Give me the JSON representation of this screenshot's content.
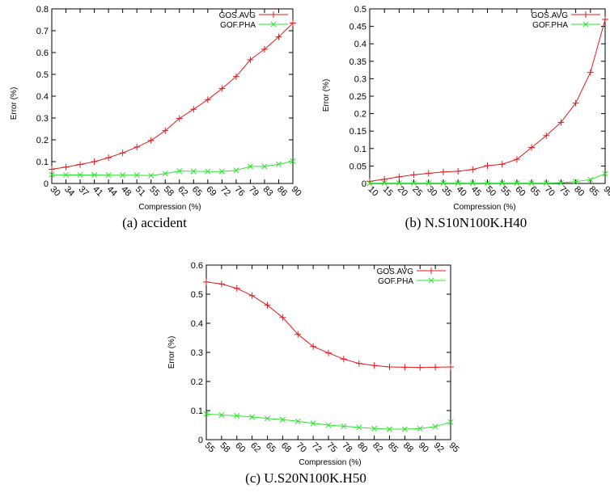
{
  "chart_data": [
    {
      "type": "line",
      "caption": "(a) accident",
      "xlabel": "Compression (%)",
      "ylabel": "Error (%)",
      "ylim": [
        0,
        0.8
      ],
      "yticks": [
        "0",
        "0.1",
        "0.2",
        "0.3",
        "0.4",
        "0.5",
        "0.6",
        "0.7",
        "0.8"
      ],
      "categories": [
        "30",
        "34",
        "37",
        "41",
        "44",
        "48",
        "51",
        "55",
        "58",
        "62",
        "65",
        "69",
        "72",
        "76",
        "79",
        "83",
        "86",
        "90"
      ],
      "legend_position": "top-right",
      "series": [
        {
          "name": "GOS.AVG",
          "color": "#e41a1c",
          "marker": "plus",
          "values": [
            0.065,
            0.075,
            0.087,
            0.1,
            0.118,
            0.14,
            0.167,
            0.197,
            0.242,
            0.298,
            0.34,
            0.384,
            0.435,
            0.49,
            0.567,
            0.615,
            0.672,
            0.735
          ]
        },
        {
          "name": "GOF.PHA",
          "color": "#2ee52e",
          "marker": "cross",
          "values": [
            0.04,
            0.039,
            0.039,
            0.039,
            0.038,
            0.038,
            0.038,
            0.036,
            0.045,
            0.057,
            0.056,
            0.055,
            0.055,
            0.06,
            0.078,
            0.078,
            0.088,
            0.102
          ]
        }
      ]
    },
    {
      "type": "line",
      "caption": "(b) N.S10N100K.H40",
      "xlabel": "Compression (%)",
      "ylabel": "Error (%)",
      "ylim": [
        0,
        0.5
      ],
      "yticks": [
        "0",
        "0.05",
        "0.1",
        "0.15",
        "0.2",
        "0.25",
        "0.3",
        "0.35",
        "0.4",
        "0.45",
        "0.5"
      ],
      "categories": [
        "10",
        "15",
        "20",
        "25",
        "30",
        "35",
        "40",
        "45",
        "50",
        "55",
        "60",
        "65",
        "70",
        "75",
        "80",
        "85",
        "90"
      ],
      "legend_position": "top-right",
      "series": [
        {
          "name": "GOS.AVG",
          "color": "#e41a1c",
          "marker": "plus",
          "values": [
            0.006,
            0.012,
            0.019,
            0.025,
            0.029,
            0.033,
            0.035,
            0.04,
            0.051,
            0.055,
            0.069,
            0.103,
            0.137,
            0.175,
            0.23,
            0.318,
            0.47
          ]
        },
        {
          "name": "GOF.PHA",
          "color": "#2ee52e",
          "marker": "cross",
          "values": [
            0.001,
            0.001,
            0.001,
            0.001,
            0.001,
            0.001,
            0.001,
            0.001,
            0.001,
            0.001,
            0.001,
            0.001,
            0.001,
            0.002,
            0.005,
            0.011,
            0.028
          ]
        }
      ]
    },
    {
      "type": "line",
      "caption": "(c) U.S20N100K.H50",
      "xlabel": "Compression (%)",
      "ylabel": "Error (%)",
      "ylim": [
        0,
        0.6
      ],
      "yticks": [
        "0",
        "0.1",
        "0.2",
        "0.3",
        "0.4",
        "0.5",
        "0.6"
      ],
      "categories": [
        "55",
        "58",
        "60",
        "62",
        "65",
        "68",
        "70",
        "72",
        "75",
        "78",
        "80",
        "82",
        "85",
        "88",
        "90",
        "92",
        "95"
      ],
      "legend_position": "top-right",
      "series": [
        {
          "name": "GOS.AVG",
          "color": "#e41a1c",
          "marker": "plus",
          "values": [
            0.542,
            0.535,
            0.52,
            0.495,
            0.462,
            0.42,
            0.362,
            0.32,
            0.298,
            0.277,
            0.262,
            0.255,
            0.25,
            0.249,
            0.248,
            0.249,
            0.25
          ]
        },
        {
          "name": "GOF.PHA",
          "color": "#2ee52e",
          "marker": "cross",
          "values": [
            0.088,
            0.085,
            0.082,
            0.078,
            0.073,
            0.069,
            0.063,
            0.056,
            0.05,
            0.046,
            0.042,
            0.038,
            0.036,
            0.036,
            0.038,
            0.045,
            0.06
          ]
        }
      ]
    }
  ]
}
